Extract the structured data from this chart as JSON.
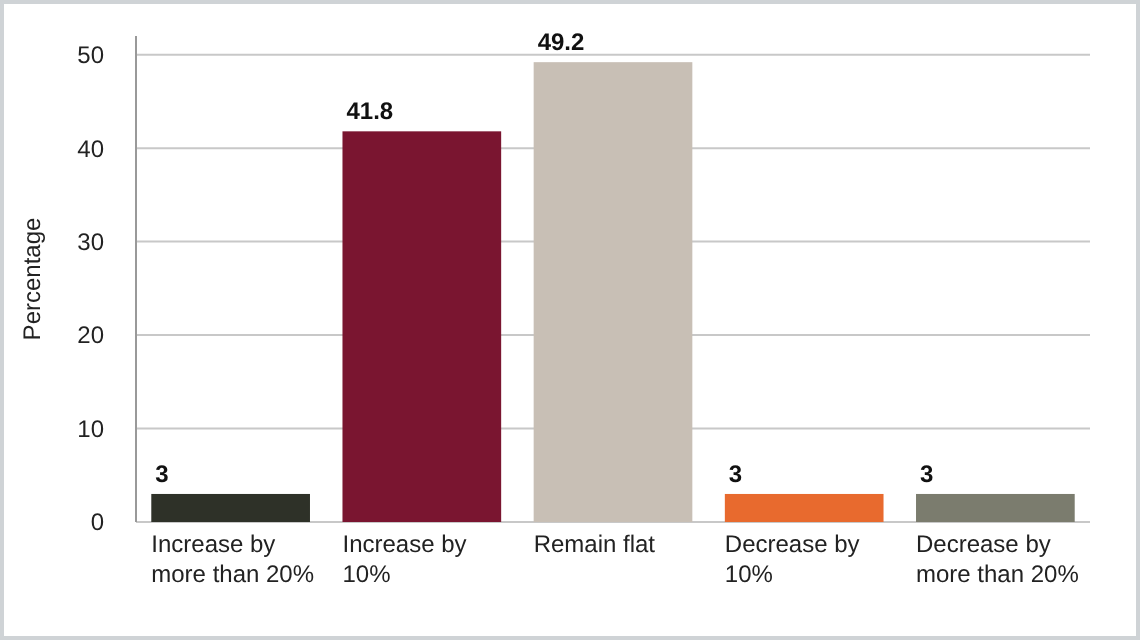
{
  "chart_data": {
    "type": "bar",
    "ylabel": "Percentage",
    "categories": [
      "Increase by more than 20%",
      "Increase by 10%",
      "Remain flat",
      "Decrease by 10%",
      "Decrease by more than 20%"
    ],
    "values": [
      3,
      41.8,
      49.2,
      3,
      3
    ],
    "colors": [
      "#2e3128",
      "#7a1530",
      "#c8bfb5",
      "#e86a2e",
      "#7b7c6e"
    ],
    "ylim": [
      0,
      52
    ],
    "yticks": [
      0,
      10,
      20,
      30,
      40,
      50
    ],
    "grid": "y",
    "data_labels": true
  }
}
